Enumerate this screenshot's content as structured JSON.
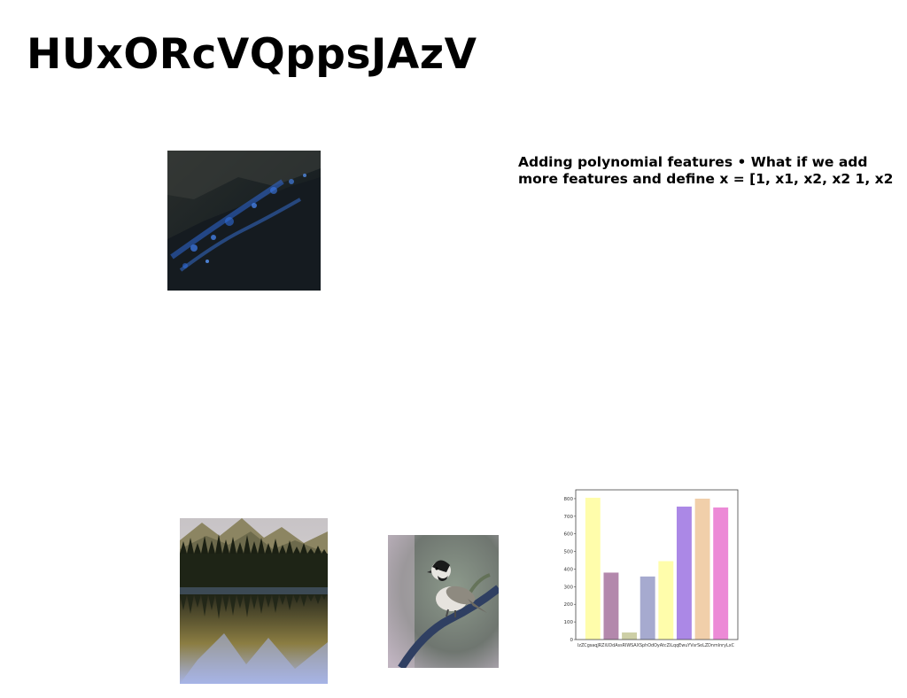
{
  "document": {
    "title": "HUxORcVQppsJAzV",
    "text_lines": [
      "Adding polynomial features • What if we add",
      "more features and define x = [1, x1, x2, x2 1, x2"
    ]
  },
  "images": {
    "forest": {
      "subject": "dark forested mountainside at night with blue lights"
    },
    "lake": {
      "subject": "mountain lake with pine forest reflected in water"
    },
    "bird": {
      "subject": "small chickadee bird perched on a branch"
    }
  },
  "chart_data": {
    "type": "bar",
    "categories": [
      "IzZCgsaqJ",
      "RZiUDd",
      "AssRlWS",
      "AXSphOdO",
      "AtcZi",
      "LqqEwuYVsr",
      "SeLZD",
      "nmlnryLxC"
    ],
    "category_label_text": "IzZCgsaqJRZiUDdAssRlWSAXSphOdOyAtcZiLqqEwuYVsrSeLZDnmlnryLxC",
    "values": [
      805,
      380,
      40,
      358,
      445,
      755,
      800,
      750
    ],
    "colors": [
      "#fffdab",
      "#b388ac",
      "#cdcfa6",
      "#a6aacf",
      "#fffdab",
      "#ab88e6",
      "#f1cfaa",
      "#ec8ad6"
    ],
    "y_ticks": [
      "0",
      "100",
      "200",
      "300",
      "400",
      "500",
      "600",
      "700",
      "800"
    ],
    "ylim": [
      0,
      850
    ]
  }
}
